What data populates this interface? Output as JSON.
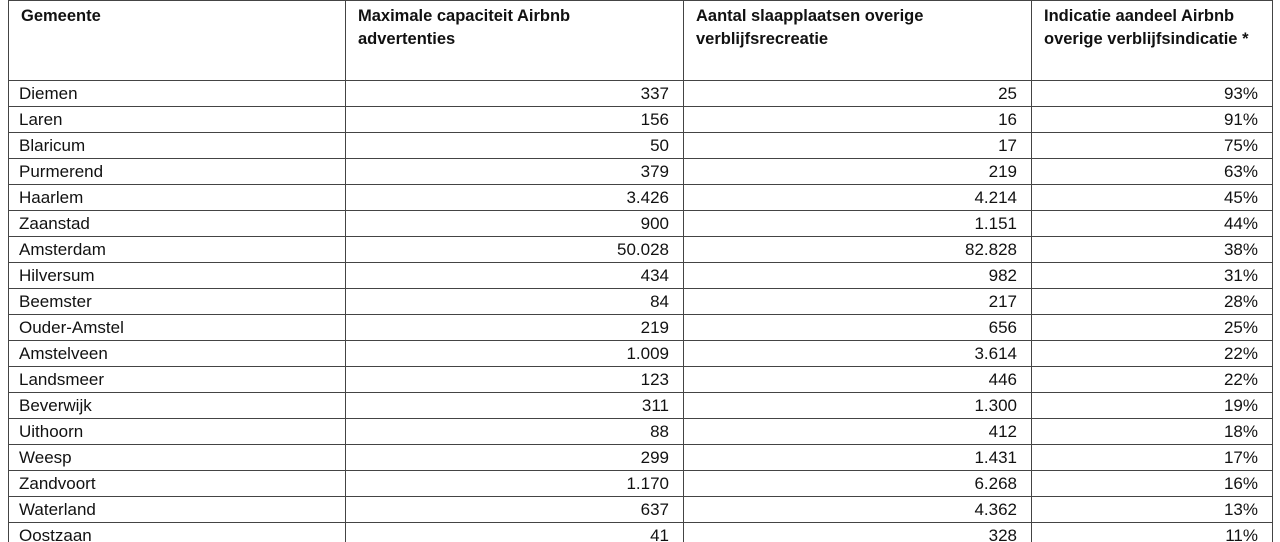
{
  "table": {
    "headers": [
      "Gemeente",
      "Maximale capaciteit Airbnb advertenties",
      "Aantal slaapplaatsen overige verblijfsrecreatie",
      "Indicatie aandeel Airbnb overige verblijfsindicatie *"
    ],
    "rows": [
      [
        "Diemen",
        "337",
        "25",
        "93%"
      ],
      [
        "Laren",
        "156",
        "16",
        "91%"
      ],
      [
        "Blaricum",
        "50",
        "17",
        "75%"
      ],
      [
        "Purmerend",
        "379",
        "219",
        "63%"
      ],
      [
        "Haarlem",
        "3.426",
        "4.214",
        "45%"
      ],
      [
        "Zaanstad",
        "900",
        "1.151",
        "44%"
      ],
      [
        "Amsterdam",
        "50.028",
        "82.828",
        "38%"
      ],
      [
        "Hilversum",
        "434",
        "982",
        "31%"
      ],
      [
        "Beemster",
        "84",
        "217",
        "28%"
      ],
      [
        "Ouder-Amstel",
        "219",
        "656",
        "25%"
      ],
      [
        "Amstelveen",
        "1.009",
        "3.614",
        "22%"
      ],
      [
        "Landsmeer",
        "123",
        "446",
        "22%"
      ],
      [
        "Beverwijk",
        "311",
        "1.300",
        "19%"
      ],
      [
        "Uithoorn",
        "88",
        "412",
        "18%"
      ],
      [
        "Weesp",
        "299",
        "1.431",
        "17%"
      ],
      [
        "Zandvoort",
        "1.170",
        "6.268",
        "16%"
      ],
      [
        "Waterland",
        "637",
        "4.362",
        "13%"
      ],
      [
        "Oostzaan",
        "41",
        "328",
        "11%"
      ]
    ]
  }
}
